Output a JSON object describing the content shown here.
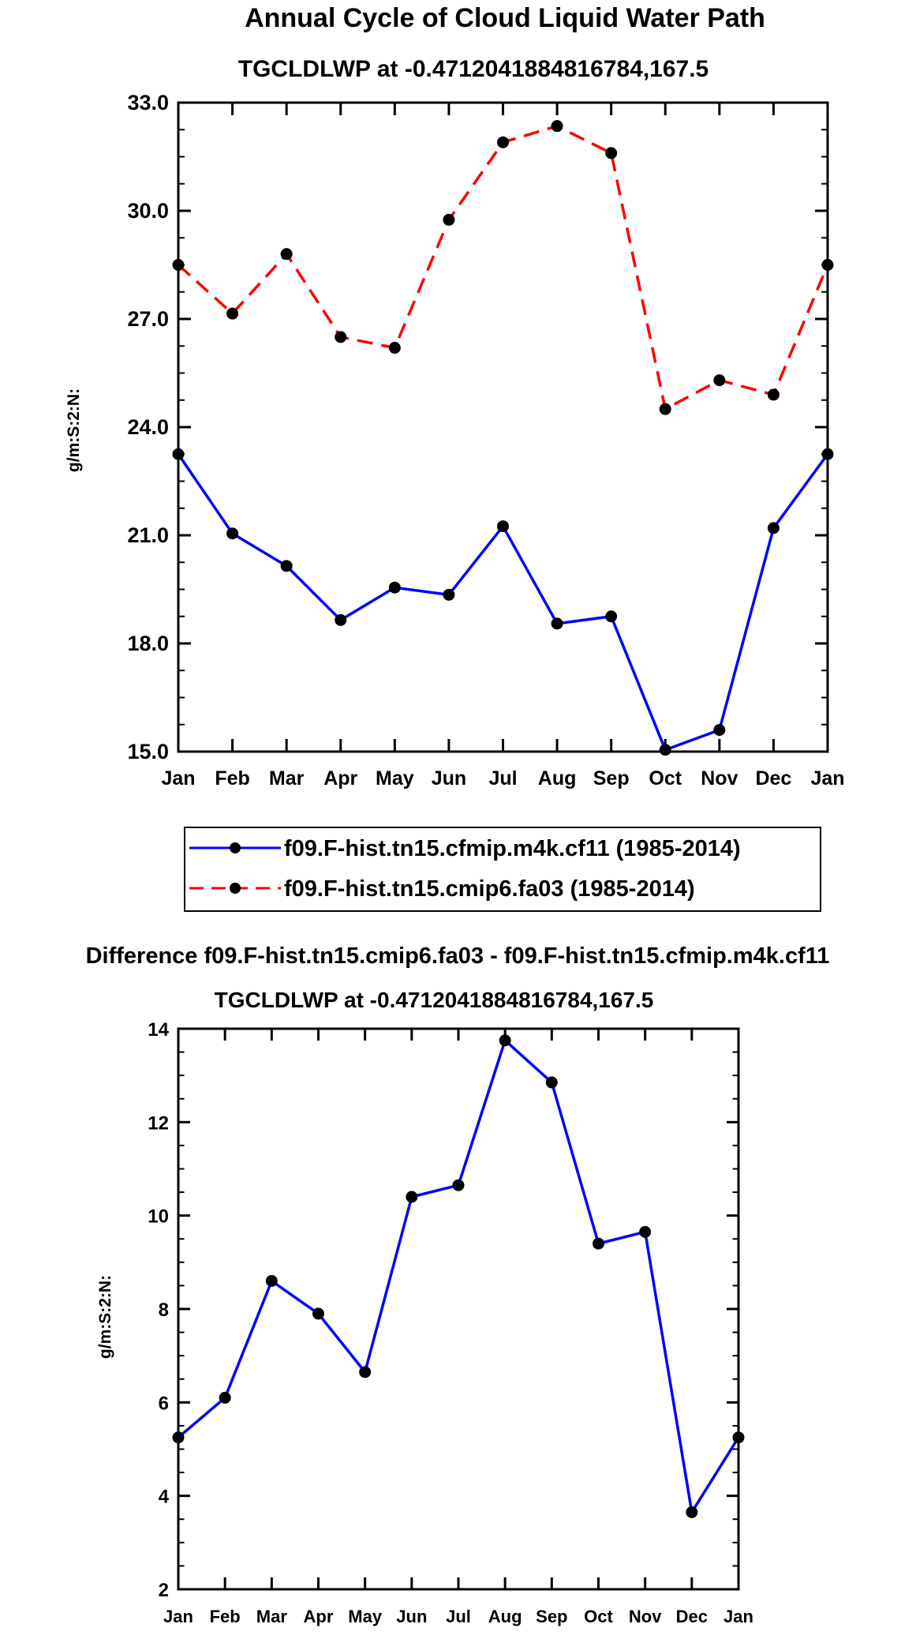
{
  "chart_data": [
    {
      "type": "line",
      "title": "Annual Cycle of Cloud Liquid Water Path",
      "subtitle": "TGCLDLWP at -0.4712041884816784,167.5",
      "ylabel": "g/m:S:2:N:",
      "xlabel": "",
      "categories": [
        "Jan",
        "Feb",
        "Mar",
        "Apr",
        "May",
        "Jun",
        "Jul",
        "Aug",
        "Sep",
        "Oct",
        "Nov",
        "Dec",
        "Jan"
      ],
      "ylim": [
        15.0,
        33.0
      ],
      "yticks": [
        "15.0",
        "18.0",
        "21.0",
        "24.0",
        "27.0",
        "30.0",
        "33.0"
      ],
      "series": [
        {
          "name": "f09.F-hist.tn15.cfmip.m4k.cf11 (1985-2014)",
          "color": "#0000ff",
          "dash": "solid",
          "values": [
            23.25,
            21.05,
            20.15,
            18.65,
            19.55,
            19.35,
            21.25,
            18.55,
            18.75,
            15.05,
            15.6,
            21.2,
            23.25
          ]
        },
        {
          "name": "f09.F-hist.tn15.cmip6.fa03 (1985-2014)",
          "color": "#ff0000",
          "dash": "dashed",
          "values": [
            28.5,
            27.15,
            28.8,
            26.5,
            26.2,
            29.75,
            31.9,
            32.35,
            31.6,
            24.5,
            25.3,
            24.9,
            28.5
          ]
        }
      ]
    },
    {
      "type": "line",
      "title": "Difference f09.F-hist.tn15.cmip6.fa03 - f09.F-hist.tn15.cfmip.m4k.cf11",
      "subtitle": "TGCLDLWP at -0.4712041884816784,167.5",
      "ylabel": "g/m:S:2:N:",
      "xlabel": "",
      "categories": [
        "Jan",
        "Feb",
        "Mar",
        "Apr",
        "May",
        "Jun",
        "Jul",
        "Aug",
        "Sep",
        "Oct",
        "Nov",
        "Dec",
        "Jan"
      ],
      "ylim": [
        2,
        14
      ],
      "yticks": [
        "2",
        "4",
        "6",
        "8",
        "10",
        "12",
        "14"
      ],
      "series": [
        {
          "name": "difference",
          "color": "#0000ff",
          "dash": "solid",
          "values": [
            5.25,
            6.1,
            8.6,
            7.9,
            6.65,
            10.4,
            10.65,
            13.75,
            12.85,
            9.4,
            9.65,
            3.65,
            5.25
          ]
        }
      ]
    }
  ]
}
